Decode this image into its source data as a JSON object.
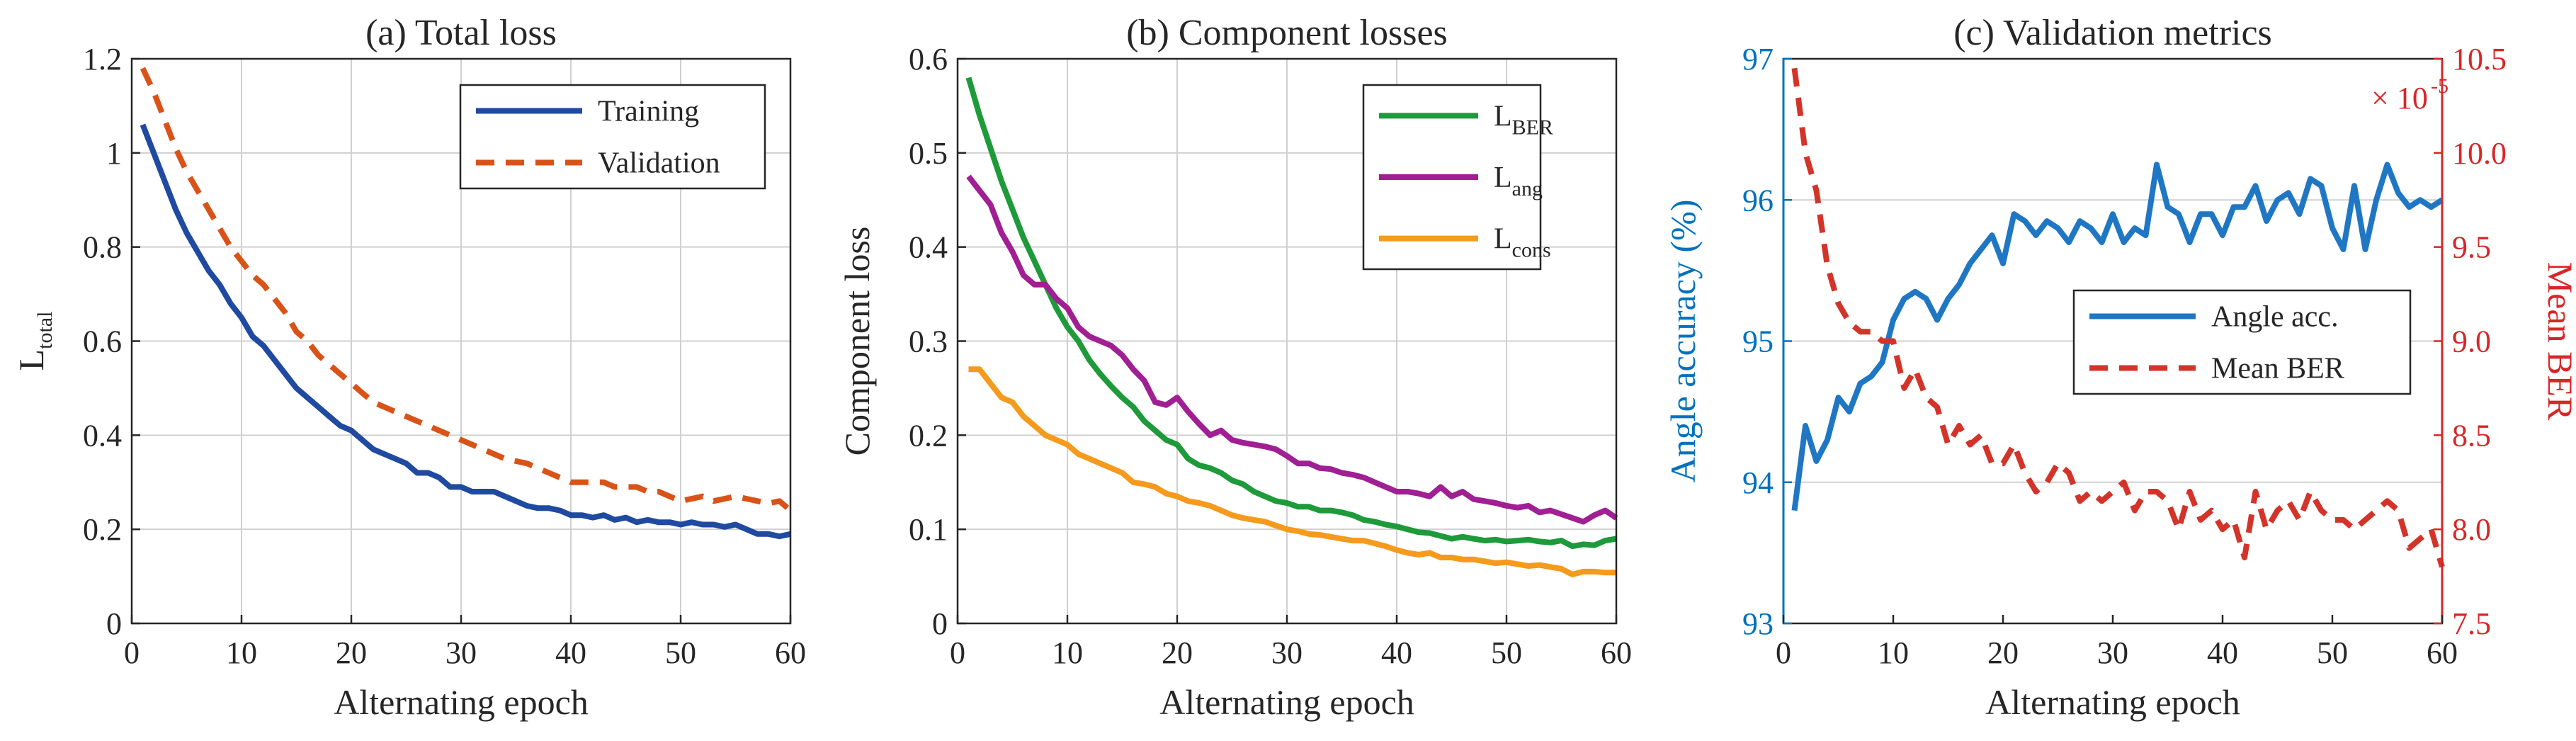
{
  "chart_data": [
    {
      "type": "line",
      "title": "(a) Total loss",
      "xlabel": "Alternating epoch",
      "ylabel": "L",
      "ylabel_sub": "total",
      "xlim": [
        0,
        60
      ],
      "ylim": [
        0,
        1.2
      ],
      "xticks": [
        "0",
        "10",
        "20",
        "30",
        "40",
        "50",
        "60"
      ],
      "yticks": [
        "0",
        "0.2",
        "0.4",
        "0.6",
        "0.8",
        "1",
        "1.2"
      ],
      "grid": true,
      "legend_position": "top-right",
      "series": [
        {
          "name": "Training",
          "color": "#1f4aa0",
          "style": "solid",
          "x": [
            1,
            2,
            3,
            4,
            5,
            6,
            7,
            8,
            9,
            10,
            11,
            12,
            13,
            14,
            15,
            16,
            17,
            18,
            19,
            20,
            21,
            22,
            23,
            24,
            25,
            26,
            27,
            28,
            29,
            30,
            31,
            32,
            33,
            34,
            35,
            36,
            37,
            38,
            39,
            40,
            41,
            42,
            43,
            44,
            45,
            46,
            47,
            48,
            49,
            50,
            51,
            52,
            53,
            54,
            55,
            56,
            57,
            58,
            59,
            60
          ],
          "values": [
            1.06,
            1.0,
            0.94,
            0.88,
            0.83,
            0.79,
            0.75,
            0.72,
            0.68,
            0.65,
            0.61,
            0.59,
            0.56,
            0.53,
            0.5,
            0.48,
            0.46,
            0.44,
            0.42,
            0.41,
            0.39,
            0.37,
            0.36,
            0.35,
            0.34,
            0.32,
            0.32,
            0.31,
            0.29,
            0.29,
            0.28,
            0.28,
            0.28,
            0.27,
            0.26,
            0.25,
            0.245,
            0.245,
            0.24,
            0.23,
            0.23,
            0.225,
            0.23,
            0.22,
            0.225,
            0.215,
            0.22,
            0.215,
            0.215,
            0.21,
            0.215,
            0.21,
            0.21,
            0.205,
            0.21,
            0.2,
            0.19,
            0.19,
            0.185,
            0.19
          ]
        },
        {
          "name": "Validation",
          "color": "#d95319",
          "style": "dashed",
          "x": [
            1,
            2,
            3,
            4,
            5,
            6,
            7,
            8,
            9,
            10,
            11,
            12,
            13,
            14,
            15,
            16,
            17,
            18,
            19,
            20,
            21,
            22,
            23,
            24,
            25,
            26,
            27,
            28,
            29,
            30,
            31,
            32,
            33,
            34,
            35,
            36,
            37,
            38,
            39,
            40,
            41,
            42,
            43,
            44,
            45,
            46,
            47,
            48,
            49,
            50,
            51,
            52,
            53,
            54,
            55,
            56,
            57,
            58,
            59,
            60
          ],
          "values": [
            1.18,
            1.13,
            1.07,
            1.01,
            0.96,
            0.92,
            0.88,
            0.84,
            0.8,
            0.77,
            0.74,
            0.72,
            0.69,
            0.66,
            0.62,
            0.6,
            0.57,
            0.55,
            0.53,
            0.51,
            0.49,
            0.47,
            0.46,
            0.45,
            0.44,
            0.43,
            0.42,
            0.41,
            0.4,
            0.39,
            0.38,
            0.37,
            0.36,
            0.35,
            0.345,
            0.34,
            0.33,
            0.32,
            0.31,
            0.3,
            0.3,
            0.3,
            0.3,
            0.29,
            0.29,
            0.29,
            0.28,
            0.28,
            0.27,
            0.26,
            0.265,
            0.27,
            0.26,
            0.265,
            0.27,
            0.265,
            0.26,
            0.255,
            0.26,
            0.24
          ]
        }
      ]
    },
    {
      "type": "line",
      "title": "(b) Component losses",
      "xlabel": "Alternating epoch",
      "ylabel": "Component loss",
      "xlim": [
        0,
        60
      ],
      "ylim": [
        0,
        0.6
      ],
      "xticks": [
        "0",
        "10",
        "20",
        "30",
        "40",
        "50",
        "60"
      ],
      "yticks": [
        "0",
        "0.1",
        "0.2",
        "0.3",
        "0.4",
        "0.5",
        "0.6"
      ],
      "grid": true,
      "legend_position": "top-right",
      "series": [
        {
          "name": "L",
          "name_sub": "BER",
          "color": "#1e9a3a",
          "style": "solid",
          "x": [
            1,
            2,
            3,
            4,
            5,
            6,
            7,
            8,
            9,
            10,
            11,
            12,
            13,
            14,
            15,
            16,
            17,
            18,
            19,
            20,
            21,
            22,
            23,
            24,
            25,
            26,
            27,
            28,
            29,
            30,
            31,
            32,
            33,
            34,
            35,
            36,
            37,
            38,
            39,
            40,
            41,
            42,
            43,
            44,
            45,
            46,
            47,
            48,
            49,
            50,
            51,
            52,
            53,
            54,
            55,
            56,
            57,
            58,
            59,
            60
          ],
          "values": [
            0.58,
            0.54,
            0.505,
            0.47,
            0.44,
            0.41,
            0.385,
            0.36,
            0.335,
            0.315,
            0.3,
            0.28,
            0.265,
            0.252,
            0.24,
            0.23,
            0.215,
            0.205,
            0.195,
            0.19,
            0.175,
            0.168,
            0.165,
            0.16,
            0.152,
            0.148,
            0.14,
            0.135,
            0.13,
            0.128,
            0.124,
            0.124,
            0.12,
            0.12,
            0.118,
            0.115,
            0.11,
            0.108,
            0.105,
            0.103,
            0.1,
            0.097,
            0.096,
            0.093,
            0.09,
            0.092,
            0.09,
            0.088,
            0.089,
            0.087,
            0.088,
            0.089,
            0.087,
            0.086,
            0.088,
            0.082,
            0.084,
            0.083,
            0.088,
            0.09
          ]
        },
        {
          "name": "L",
          "name_sub": "ang",
          "color": "#a01f93",
          "style": "solid",
          "x": [
            1,
            2,
            3,
            4,
            5,
            6,
            7,
            8,
            9,
            10,
            11,
            12,
            13,
            14,
            15,
            16,
            17,
            18,
            19,
            20,
            21,
            22,
            23,
            24,
            25,
            26,
            27,
            28,
            29,
            30,
            31,
            32,
            33,
            34,
            35,
            36,
            37,
            38,
            39,
            40,
            41,
            42,
            43,
            44,
            45,
            46,
            47,
            48,
            49,
            50,
            51,
            52,
            53,
            54,
            55,
            56,
            57,
            58,
            59,
            60
          ],
          "values": [
            0.475,
            0.46,
            0.445,
            0.415,
            0.395,
            0.37,
            0.36,
            0.36,
            0.345,
            0.335,
            0.315,
            0.305,
            0.3,
            0.295,
            0.285,
            0.27,
            0.258,
            0.235,
            0.232,
            0.24,
            0.225,
            0.212,
            0.2,
            0.205,
            0.195,
            0.192,
            0.19,
            0.188,
            0.185,
            0.178,
            0.17,
            0.17,
            0.165,
            0.164,
            0.16,
            0.158,
            0.155,
            0.15,
            0.145,
            0.14,
            0.14,
            0.138,
            0.135,
            0.145,
            0.135,
            0.14,
            0.132,
            0.13,
            0.128,
            0.125,
            0.123,
            0.125,
            0.118,
            0.12,
            0.116,
            0.112,
            0.108,
            0.115,
            0.12,
            0.112
          ]
        },
        {
          "name": "L",
          "name_sub": "cons",
          "color": "#f59a1c",
          "style": "solid",
          "x": [
            1,
            2,
            3,
            4,
            5,
            6,
            7,
            8,
            9,
            10,
            11,
            12,
            13,
            14,
            15,
            16,
            17,
            18,
            19,
            20,
            21,
            22,
            23,
            24,
            25,
            26,
            27,
            28,
            29,
            30,
            31,
            32,
            33,
            34,
            35,
            36,
            37,
            38,
            39,
            40,
            41,
            42,
            43,
            44,
            45,
            46,
            47,
            48,
            49,
            50,
            51,
            52,
            53,
            54,
            55,
            56,
            57,
            58,
            59,
            60
          ],
          "values": [
            0.27,
            0.27,
            0.255,
            0.24,
            0.235,
            0.22,
            0.21,
            0.2,
            0.195,
            0.19,
            0.18,
            0.175,
            0.17,
            0.165,
            0.16,
            0.15,
            0.148,
            0.145,
            0.138,
            0.135,
            0.13,
            0.128,
            0.125,
            0.12,
            0.115,
            0.112,
            0.11,
            0.108,
            0.104,
            0.1,
            0.098,
            0.095,
            0.094,
            0.092,
            0.09,
            0.088,
            0.088,
            0.085,
            0.082,
            0.078,
            0.075,
            0.073,
            0.075,
            0.07,
            0.07,
            0.068,
            0.068,
            0.066,
            0.064,
            0.065,
            0.063,
            0.061,
            0.062,
            0.06,
            0.058,
            0.052,
            0.055,
            0.055,
            0.054,
            0.054
          ]
        }
      ]
    },
    {
      "type": "line",
      "title": "(c) Validation metrics",
      "xlabel": "Alternating epoch",
      "ylabel": "Angle accuracy (%)",
      "ylabel_right": "Mean BER",
      "exponent_label": "× 10",
      "exponent_power": "-5",
      "xlim": [
        0,
        60
      ],
      "ylim": [
        93,
        97
      ],
      "ylim_right": [
        7.5,
        10.5
      ],
      "xticks": [
        "0",
        "10",
        "20",
        "30",
        "40",
        "50",
        "60"
      ],
      "yticks": [
        "93",
        "94",
        "95",
        "96",
        "97"
      ],
      "yticks_right": [
        "7.5",
        "8.0",
        "8.5",
        "9.0",
        "9.5",
        "10.0",
        "10.5"
      ],
      "grid": "horizontal-only",
      "legend_position": "center-right",
      "axis_color_left": "#0072bd",
      "axis_color_right": "#d62728",
      "series": [
        {
          "name": "Angle acc.",
          "axis": "left",
          "color": "#1f77c4",
          "style": "solid",
          "x": [
            1,
            2,
            3,
            4,
            5,
            6,
            7,
            8,
            9,
            10,
            11,
            12,
            13,
            14,
            15,
            16,
            17,
            18,
            19,
            20,
            21,
            22,
            23,
            24,
            25,
            26,
            27,
            28,
            29,
            30,
            31,
            32,
            33,
            34,
            35,
            36,
            37,
            38,
            39,
            40,
            41,
            42,
            43,
            44,
            45,
            46,
            47,
            48,
            49,
            50,
            51,
            52,
            53,
            54,
            55,
            56,
            57,
            58,
            59,
            60
          ],
          "values": [
            93.8,
            94.4,
            94.15,
            94.3,
            94.6,
            94.5,
            94.7,
            94.75,
            94.85,
            95.15,
            95.3,
            95.35,
            95.3,
            95.15,
            95.3,
            95.4,
            95.55,
            95.65,
            95.75,
            95.55,
            95.9,
            95.85,
            95.75,
            95.85,
            95.8,
            95.7,
            95.85,
            95.8,
            95.7,
            95.9,
            95.7,
            95.8,
            95.75,
            96.25,
            95.95,
            95.9,
            95.7,
            95.9,
            95.9,
            95.75,
            95.95,
            95.95,
            96.1,
            95.85,
            96.0,
            96.05,
            95.9,
            96.15,
            96.1,
            95.8,
            95.65,
            96.1,
            95.65,
            96.0,
            96.25,
            96.05,
            95.95,
            96.0,
            95.95,
            96.0
          ]
        },
        {
          "name": "Mean BER",
          "axis": "right",
          "color": "#d3342a",
          "style": "dashed",
          "x": [
            1,
            2,
            3,
            4,
            5,
            6,
            7,
            8,
            9,
            10,
            11,
            12,
            13,
            14,
            15,
            16,
            17,
            18,
            19,
            20,
            21,
            22,
            23,
            24,
            25,
            26,
            27,
            28,
            29,
            30,
            31,
            32,
            33,
            34,
            35,
            36,
            37,
            38,
            39,
            40,
            41,
            42,
            43,
            44,
            45,
            46,
            47,
            48,
            49,
            50,
            51,
            52,
            53,
            54,
            55,
            56,
            57,
            58,
            59,
            60
          ],
          "values": [
            10.45,
            10.0,
            9.8,
            9.4,
            9.2,
            9.1,
            9.05,
            9.05,
            9.0,
            9.0,
            8.75,
            8.85,
            8.7,
            8.65,
            8.45,
            8.55,
            8.45,
            8.5,
            8.35,
            8.35,
            8.45,
            8.3,
            8.2,
            8.25,
            8.35,
            8.3,
            8.15,
            8.2,
            8.15,
            8.2,
            8.25,
            8.1,
            8.2,
            8.2,
            8.15,
            8.0,
            8.2,
            8.05,
            8.1,
            8.0,
            8.05,
            7.85,
            8.2,
            8.0,
            8.1,
            8.15,
            8.05,
            8.2,
            8.1,
            8.05,
            8.05,
            8.0,
            8.05,
            8.1,
            8.15,
            8.1,
            7.9,
            7.95,
            8.0,
            7.8
          ]
        }
      ]
    }
  ]
}
